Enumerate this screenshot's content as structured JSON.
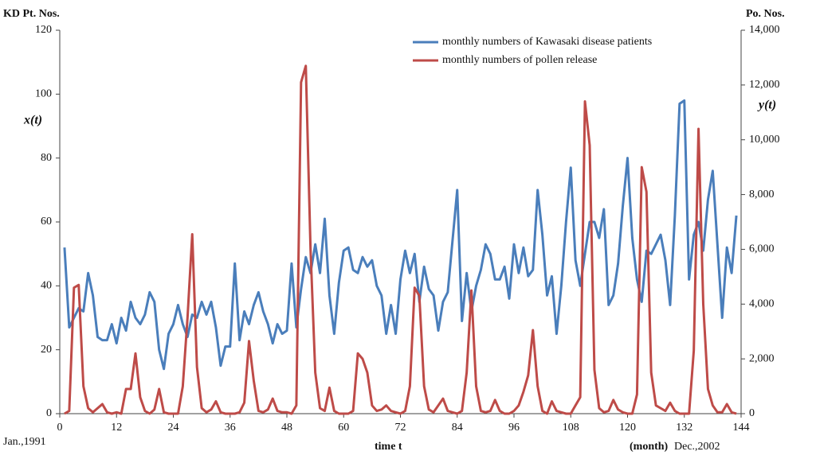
{
  "chart_data": {
    "type": "line",
    "y_label": "KD Pt. Nos.",
    "y2_label": "Po. Nos.",
    "y_symbol": "x(t)",
    "y2_symbol": "y(t)",
    "x_label": "time t",
    "x_unit": "(month)",
    "x_start_label": "Jan.,1991",
    "x_end_label": "Dec.,2002",
    "x": [
      1,
      2,
      3,
      4,
      5,
      6,
      7,
      8,
      9,
      10,
      11,
      12,
      13,
      14,
      15,
      16,
      17,
      18,
      19,
      20,
      21,
      22,
      23,
      24,
      25,
      26,
      27,
      28,
      29,
      30,
      31,
      32,
      33,
      34,
      35,
      36,
      37,
      38,
      39,
      40,
      41,
      42,
      43,
      44,
      45,
      46,
      47,
      48,
      49,
      50,
      51,
      52,
      53,
      54,
      55,
      56,
      57,
      58,
      59,
      60,
      61,
      62,
      63,
      64,
      65,
      66,
      67,
      68,
      69,
      70,
      71,
      72,
      73,
      74,
      75,
      76,
      77,
      78,
      79,
      80,
      81,
      82,
      83,
      84,
      85,
      86,
      87,
      88,
      89,
      90,
      91,
      92,
      93,
      94,
      95,
      96,
      97,
      98,
      99,
      100,
      101,
      102,
      103,
      104,
      105,
      106,
      107,
      108,
      109,
      110,
      111,
      112,
      113,
      114,
      115,
      116,
      117,
      118,
      119,
      120,
      121,
      122,
      123,
      124,
      125,
      126,
      127,
      128,
      129,
      130,
      131,
      132,
      133,
      134,
      135,
      136,
      137,
      138,
      139,
      140,
      141,
      142,
      143
    ],
    "series": [
      {
        "name": "monthly numbers of Kawasaki disease patients",
        "color": "#4a7ebb",
        "axis": "y",
        "values": [
          52,
          27,
          30,
          33,
          32,
          44,
          37,
          24,
          23,
          23,
          28,
          22,
          30,
          26,
          35,
          30,
          28,
          31,
          38,
          35,
          20,
          14,
          25,
          28,
          34,
          28,
          24,
          31,
          30,
          35,
          31,
          35,
          27,
          15,
          21,
          21,
          47,
          23,
          32,
          28,
          34,
          38,
          32,
          28,
          22,
          28,
          25,
          26,
          47,
          27,
          39,
          49,
          44,
          53,
          44,
          61,
          37,
          25,
          41,
          51,
          52,
          45,
          44,
          49,
          46,
          48,
          40,
          37,
          25,
          34,
          25,
          42,
          51,
          44,
          50,
          35,
          46,
          39,
          37,
          26,
          35,
          38,
          54,
          70,
          29,
          44,
          32,
          40,
          45,
          53,
          50,
          42,
          42,
          46,
          36,
          53,
          44,
          52,
          43,
          45,
          70,
          56,
          37,
          43,
          25,
          40,
          60,
          77,
          48,
          40,
          50,
          60,
          60,
          55,
          64,
          34,
          37,
          47,
          65,
          80,
          55,
          42,
          35,
          51,
          50,
          53,
          56,
          48,
          34,
          62,
          97,
          98,
          42,
          56,
          60,
          51,
          67,
          76,
          53,
          30,
          52,
          44,
          62
        ]
      },
      {
        "name": "monthly numbers of pollen release",
        "color": "#be4b48",
        "axis": "y2",
        "values": [
          0,
          100,
          4600,
          4700,
          1000,
          200,
          50,
          200,
          350,
          50,
          0,
          50,
          0,
          900,
          900,
          2200,
          600,
          100,
          0,
          150,
          900,
          50,
          0,
          0,
          0,
          1000,
          3500,
          6550,
          1700,
          200,
          50,
          150,
          450,
          50,
          0,
          0,
          0,
          50,
          400,
          2650,
          1200,
          100,
          50,
          150,
          550,
          100,
          50,
          50,
          0,
          300,
          12100,
          12700,
          6000,
          1500,
          200,
          100,
          950,
          100,
          0,
          0,
          0,
          100,
          2200,
          2000,
          1500,
          300,
          100,
          150,
          300,
          100,
          50,
          0,
          100,
          1000,
          4600,
          4300,
          1000,
          150,
          50,
          300,
          550,
          100,
          50,
          0,
          100,
          1500,
          4500,
          1000,
          100,
          50,
          100,
          500,
          100,
          0,
          0,
          100,
          300,
          800,
          1400,
          3050,
          1000,
          100,
          0,
          450,
          100,
          50,
          0,
          0,
          300,
          600,
          11400,
          9800,
          1600,
          200,
          50,
          100,
          500,
          150,
          50,
          0,
          0,
          700,
          9000,
          8100,
          1500,
          300,
          200,
          100,
          400,
          100,
          0,
          0,
          0,
          2300,
          10400,
          4000,
          900,
          300,
          50,
          50,
          350,
          50,
          0
        ]
      }
    ],
    "xlim": [
      0,
      144
    ],
    "xticks": [
      0,
      12,
      24,
      36,
      48,
      60,
      72,
      84,
      96,
      108,
      120,
      132,
      144
    ],
    "ylim": [
      0,
      120
    ],
    "yticks": [
      0,
      20,
      40,
      60,
      80,
      100,
      120
    ],
    "y2lim": [
      0,
      14000
    ],
    "y2ticks": [
      0,
      {
        "value": 2000,
        "label": "2,000"
      },
      {
        "value": 4000,
        "label": "4,000"
      },
      {
        "value": 6000,
        "label": "6,000"
      },
      {
        "value": 8000,
        "label": "8,000"
      },
      {
        "value": 10000,
        "label": "10,000"
      },
      {
        "value": 12000,
        "label": "12,000"
      },
      {
        "value": 14000,
        "label": "14,000"
      }
    ],
    "legend": "top"
  }
}
